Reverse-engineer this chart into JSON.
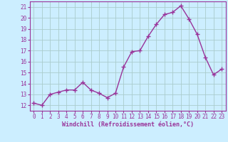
{
  "x": [
    0,
    1,
    2,
    3,
    4,
    5,
    6,
    7,
    8,
    9,
    10,
    11,
    12,
    13,
    14,
    15,
    16,
    17,
    18,
    19,
    20,
    21,
    22,
    23
  ],
  "y": [
    12.2,
    12.0,
    13.0,
    13.2,
    13.4,
    13.4,
    14.1,
    13.4,
    13.1,
    12.7,
    13.1,
    15.5,
    16.9,
    17.0,
    18.3,
    19.4,
    20.3,
    20.5,
    21.1,
    19.9,
    18.5,
    16.4,
    14.8,
    15.3
  ],
  "line_color": "#993399",
  "marker": "+",
  "marker_size": 4,
  "bg_color": "#cceeff",
  "grid_color": "#aacccc",
  "xlabel": "Windchill (Refroidissement éolien,°C)",
  "xlabel_color": "#993399",
  "tick_color": "#993399",
  "label_color": "#993399",
  "ylim_min": 11.5,
  "ylim_max": 21.5,
  "yticks": [
    12,
    13,
    14,
    15,
    16,
    17,
    18,
    19,
    20,
    21
  ],
  "xticks": [
    0,
    1,
    2,
    3,
    4,
    5,
    6,
    7,
    8,
    9,
    10,
    11,
    12,
    13,
    14,
    15,
    16,
    17,
    18,
    19,
    20,
    21,
    22,
    23
  ],
  "line_width": 1.0,
  "tick_fontsize": 5.5,
  "xlabel_fontsize": 6.0,
  "spine_color": "#993399"
}
